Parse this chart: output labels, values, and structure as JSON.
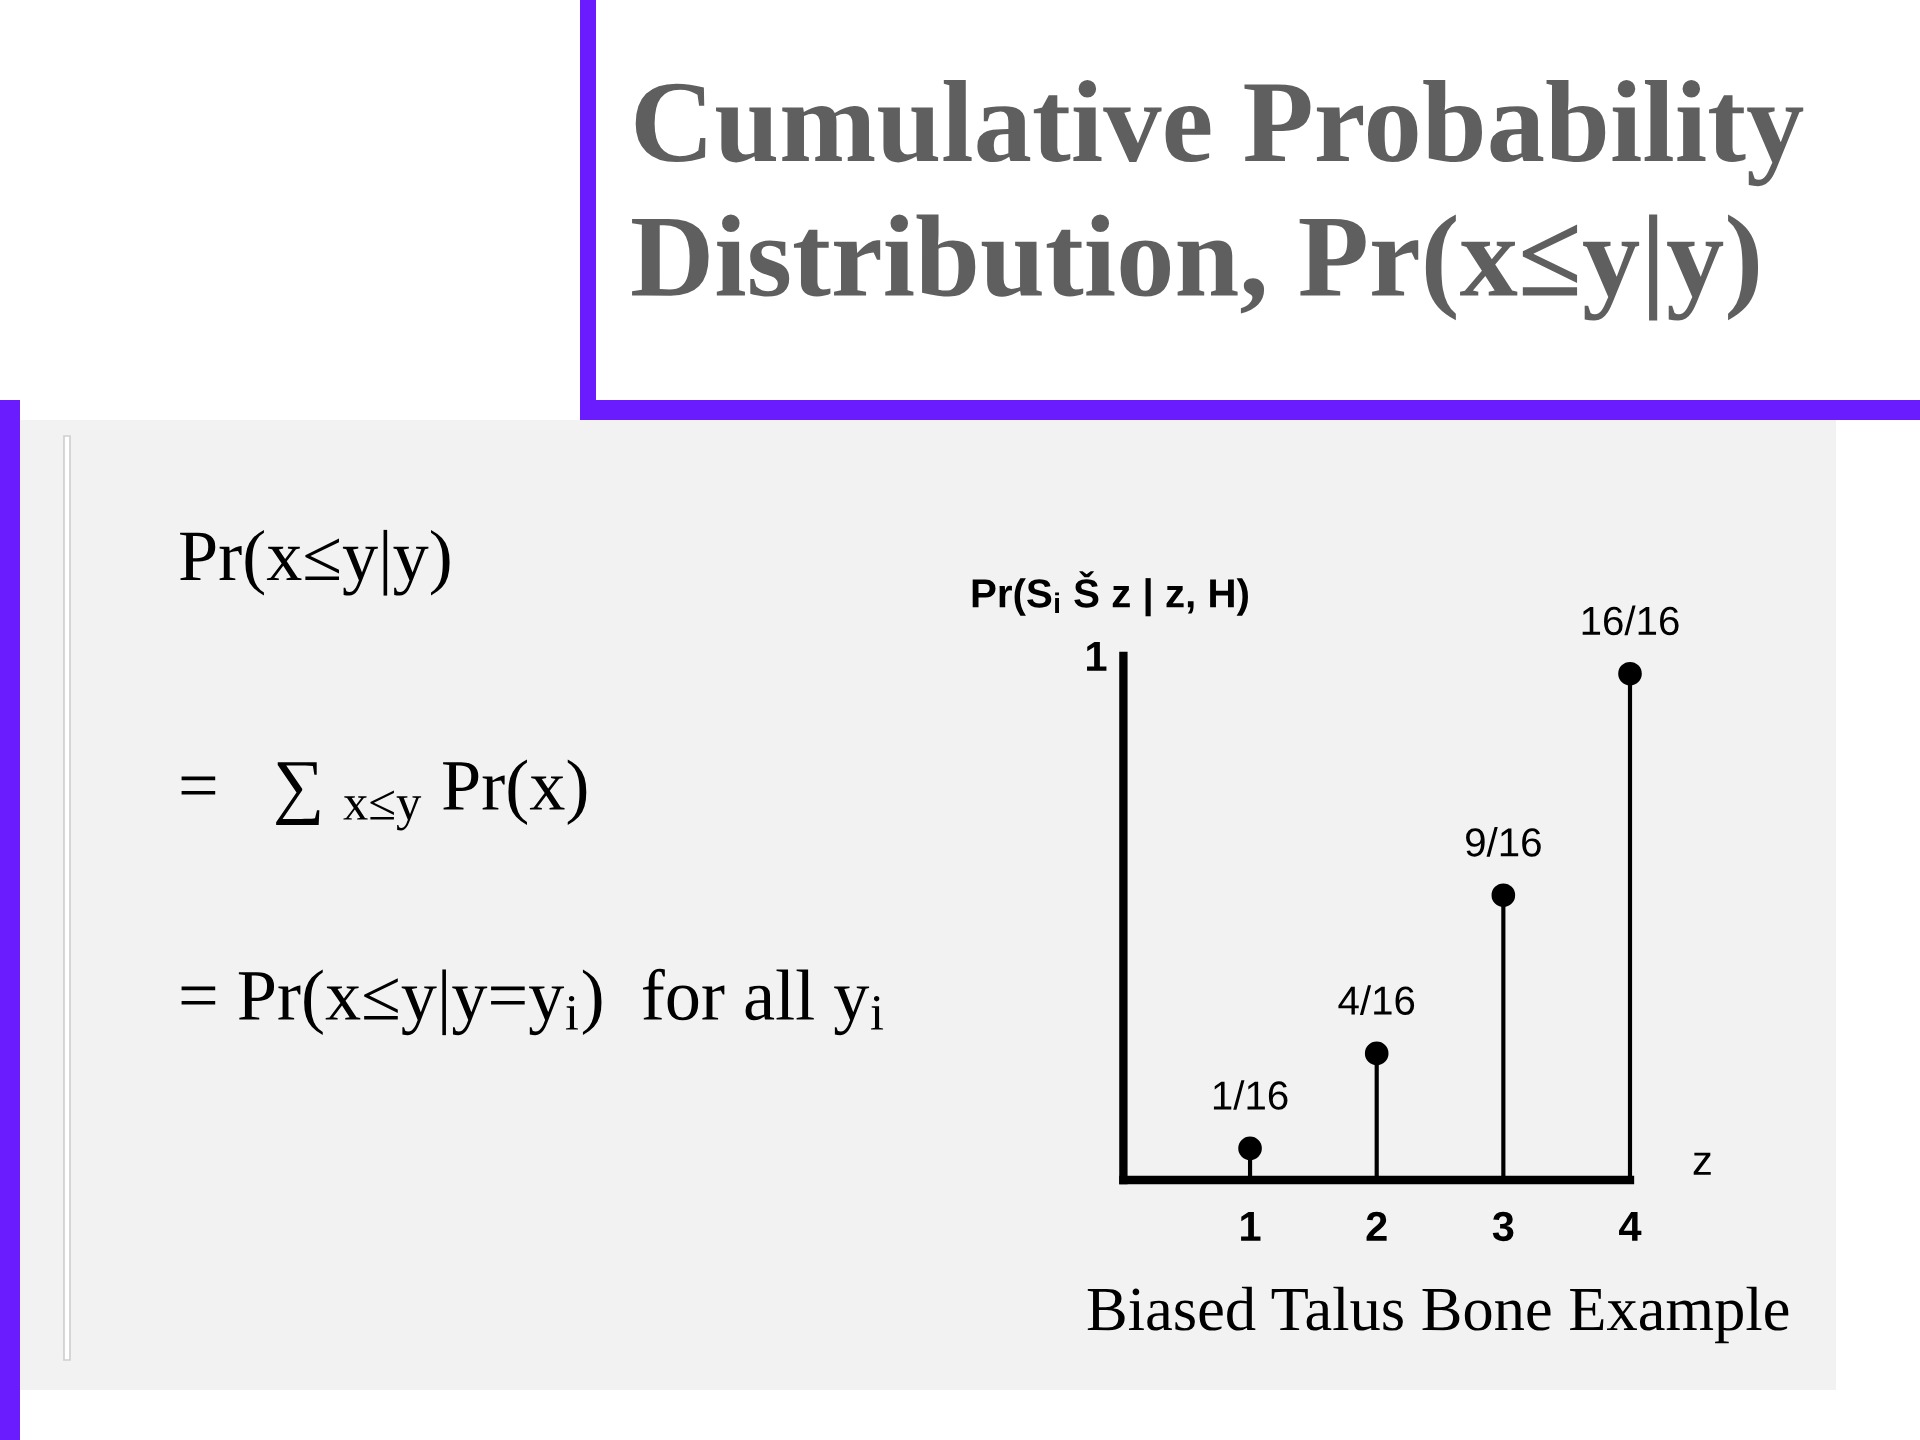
{
  "chart_data": {
    "type": "lollipop",
    "title": "Cumulative Probability Distribution, Pr(x≤y|y)",
    "xlabel": "z",
    "ylabel": "Pr(S$_{i}$ Š z | z, H)",
    "x": [
      1,
      2,
      3,
      4
    ],
    "values": [
      0.0625,
      0.25,
      0.5625,
      1
    ],
    "value_labels": [
      "1/16",
      "4/16",
      "9/16",
      "16/16"
    ],
    "color": "#000000",
    "marker": "circle",
    "xlim": [
      0,
      4
    ],
    "xticks": [
      1,
      2,
      3,
      4
    ],
    "ylim": [
      0,
      1.035
    ],
    "annotations": [
      "Pr(x≤y|y)",
      "=   ∑ $_{x≤y}$ Pr(x)",
      "= Pr(x≤y|y=y$_{i}$)  for all y$_{i}$",
      "1",
      "Biased Talus Bone Example"
    ]
  }
}
